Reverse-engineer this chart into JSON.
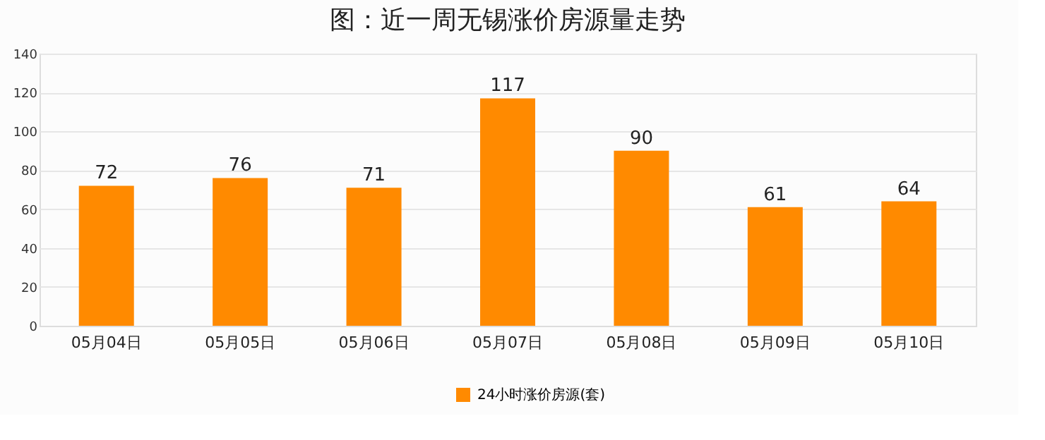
{
  "chart_data": {
    "type": "bar",
    "title": "图：近一周无锡涨价房源量走势",
    "categories": [
      "05月04日",
      "05月05日",
      "05月06日",
      "05月07日",
      "05月08日",
      "05月09日",
      "05月10日"
    ],
    "series": [
      {
        "name": "24小时涨价房源(套)",
        "color": "#ff8a00",
        "values": [
          72,
          76,
          71,
          117,
          90,
          61,
          64
        ]
      }
    ],
    "ylim": [
      0,
      140
    ],
    "yticks": [
      0,
      20,
      40,
      60,
      80,
      100,
      120,
      140
    ],
    "grid": "y",
    "legend": "bottom",
    "data_labels": true
  }
}
